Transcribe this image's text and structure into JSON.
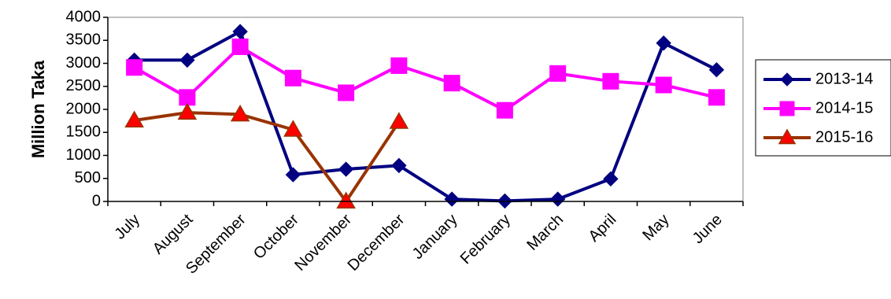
{
  "chart_data": {
    "type": "line",
    "title": "",
    "xlabel": "",
    "ylabel": "Million Taka",
    "ylim": [
      0,
      4000
    ],
    "yticks": [
      0,
      500,
      1000,
      1500,
      2000,
      2500,
      3000,
      3500,
      4000
    ],
    "grid": false,
    "legend_position": "right",
    "categories": [
      "July",
      "August",
      "September",
      "October",
      "November",
      "December",
      "January",
      "February",
      "March",
      "April",
      "May",
      "June"
    ],
    "series": [
      {
        "name": "2013-14",
        "color": "#000080",
        "marker": "diamond",
        "values": [
          3070,
          3070,
          3690,
          580,
          700,
          780,
          50,
          10,
          50,
          490,
          3440,
          2860
        ]
      },
      {
        "name": "2014-15",
        "color": "#FF00FF",
        "marker": "square",
        "values": [
          2910,
          2260,
          3360,
          2680,
          2360,
          2950,
          2570,
          1980,
          2780,
          2610,
          2530,
          2260
        ]
      },
      {
        "name": "2015-16",
        "color": "#993300",
        "marker_fill": "#FF0000",
        "marker": "triangle",
        "values": [
          1760,
          1930,
          1890,
          1560,
          0,
          1730,
          null,
          null,
          null,
          null,
          null,
          null
        ]
      }
    ]
  }
}
